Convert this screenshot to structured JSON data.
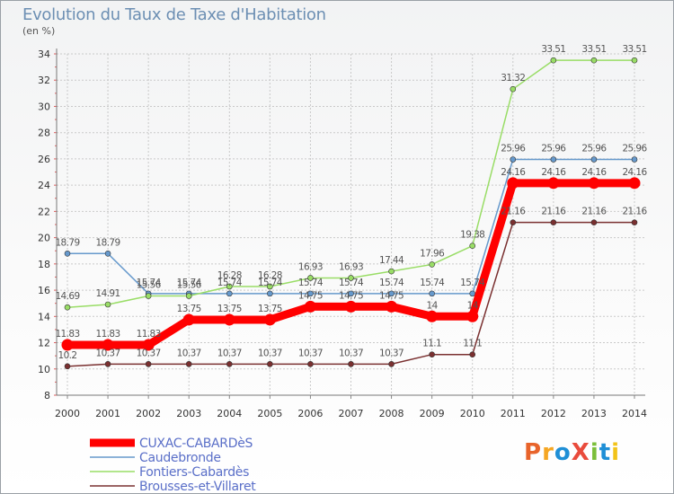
{
  "chart_data": {
    "type": "line",
    "title": "Evolution du Taux de Taxe d'Habitation",
    "ylabel": "(en %)",
    "x": [
      2000,
      2001,
      2002,
      2003,
      2004,
      2005,
      2006,
      2007,
      2008,
      2009,
      2010,
      2011,
      2012,
      2013,
      2014
    ],
    "ylim": [
      8,
      34
    ],
    "yticks": [
      8,
      10,
      12,
      14,
      16,
      18,
      20,
      22,
      24,
      26,
      28,
      30,
      32,
      34
    ],
    "grid": true,
    "legend_position": "bottom-left",
    "series": [
      {
        "name": "CUXAC-CABARDèS",
        "color": "#ff0000",
        "values": [
          11.83,
          11.83,
          11.83,
          13.75,
          13.75,
          13.75,
          14.75,
          14.75,
          14.75,
          14,
          14,
          24.16,
          24.16,
          24.16,
          24.16
        ],
        "labels": [
          "11.83",
          "11.83",
          "11.83",
          "13.75",
          "13.75",
          "13.75",
          "14.75",
          "14.75",
          "14.75",
          "14",
          "14",
          "24.16",
          "24.16",
          "24.16",
          "24.16"
        ]
      },
      {
        "name": "Caudebronde",
        "color": "#6699cc",
        "values": [
          18.79,
          18.79,
          15.74,
          15.74,
          15.74,
          15.74,
          15.74,
          15.74,
          15.74,
          15.74,
          15.74,
          25.96,
          25.96,
          25.96,
          25.96
        ],
        "labels": [
          "18.79",
          "18.79",
          "15.74",
          "15.74",
          "15.74",
          "15.74",
          "15.74",
          "15.74",
          "15.74",
          "15.74",
          "15.74",
          "25.96",
          "25.96",
          "25.96",
          "25.96"
        ]
      },
      {
        "name": "Fontiers-Cabardès",
        "color": "#99dd66",
        "values": [
          14.69,
          14.91,
          15.56,
          15.56,
          16.28,
          16.28,
          16.93,
          16.93,
          17.44,
          17.96,
          19.38,
          31.32,
          33.51,
          33.51,
          33.51
        ],
        "labels": [
          "14.69",
          "14.91",
          "15.56",
          "15.56",
          "16.28",
          "16.28",
          "16.93",
          "16.93",
          "17.44",
          "17.96",
          "19.38",
          "31.32",
          "33.51",
          "33.51",
          "33.51"
        ]
      },
      {
        "name": "Brousses-et-Villaret",
        "color": "#7a3030",
        "values": [
          10.2,
          10.37,
          10.37,
          10.37,
          10.37,
          10.37,
          10.37,
          10.37,
          10.37,
          11.1,
          11.1,
          21.16,
          21.16,
          21.16,
          21.16
        ],
        "labels": [
          "10.2",
          "10.37",
          "10.37",
          "10.37",
          "10.37",
          "10.37",
          "10.37",
          "10.37",
          "10.37",
          "11.1",
          "11.1",
          "21.16",
          "21.16",
          "21.16",
          "21.16"
        ]
      }
    ]
  },
  "logo": {
    "text": "ProXiti",
    "colors": [
      "#e8632a",
      "#f5a623",
      "#1f8fd6",
      "#e94b3c",
      "#7bbf3a",
      "#1f8fd6",
      "#f2c318"
    ]
  }
}
